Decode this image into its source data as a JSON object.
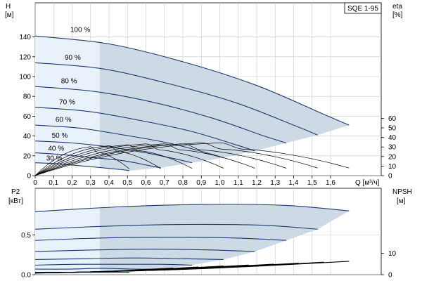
{
  "chart_data": [
    {
      "type": "line",
      "title": "SQE 1-95",
      "xlabel": "Q [м³/ч]",
      "ylabel": [
        "H",
        "[м]"
      ],
      "y2label": [
        "eta",
        "[%]"
      ],
      "xlim": [
        0,
        1.8
      ],
      "ylim": [
        0,
        160
      ],
      "y2lim": [
        0,
        70
      ],
      "x_ticks": [
        "0",
        "0,1",
        "0,2",
        "0,3",
        "0,4",
        "0,5",
        "0,6",
        "0,7",
        "0,8",
        "0,9",
        "1,0",
        "1,1",
        "1,2",
        "1,3",
        "1,4",
        "1,5",
        "1,6"
      ],
      "y_ticks": [
        "0",
        "20",
        "40",
        "60",
        "80",
        "100",
        "120",
        "140"
      ],
      "y2_ticks": [
        "0",
        "10",
        "20",
        "30",
        "40",
        "50",
        "60"
      ],
      "grid": true,
      "colors": {
        "curve": "#1c3a6e",
        "operating_area": "#cdd9e5",
        "light_area": "#e9f1fb",
        "efficiency": "#000000"
      },
      "series": [
        {
          "name": "100 %",
          "x": [
            0,
            0.4,
            0.8,
            1.2,
            1.55,
            1.7
          ],
          "values": [
            141,
            133,
            115,
            91,
            63,
            51
          ]
        },
        {
          "name": "90 %",
          "x": [
            0,
            0.36,
            0.72,
            1.08,
            1.4,
            1.53
          ],
          "values": [
            114,
            108,
            93,
            74,
            51,
            41
          ]
        },
        {
          "name": "80 %",
          "x": [
            0,
            0.32,
            0.64,
            0.96,
            1.24,
            1.36
          ],
          "values": [
            90,
            85,
            74,
            58,
            40,
            33
          ]
        },
        {
          "name": "70 %",
          "x": [
            0,
            0.28,
            0.56,
            0.84,
            1.09,
            1.19
          ],
          "values": [
            69,
            65,
            56,
            45,
            31,
            25
          ]
        },
        {
          "name": "60 %",
          "x": [
            0,
            0.24,
            0.48,
            0.72,
            0.93,
            1.02
          ],
          "values": [
            51,
            48,
            41,
            33,
            23,
            18
          ]
        },
        {
          "name": "50 %",
          "x": [
            0,
            0.2,
            0.4,
            0.6,
            0.78,
            0.85
          ],
          "values": [
            35,
            33,
            29,
            23,
            16,
            13
          ]
        },
        {
          "name": "40 %",
          "x": [
            0,
            0.16,
            0.32,
            0.48,
            0.62,
            0.68
          ],
          "values": [
            23,
            21,
            18,
            15,
            10,
            8
          ]
        },
        {
          "name": "30 %",
          "x": [
            0,
            0.12,
            0.24,
            0.36,
            0.47,
            0.51
          ],
          "values": [
            13,
            12,
            10,
            8,
            6,
            5
          ]
        }
      ]
    },
    {
      "type": "line",
      "ylabel": [
        "P2",
        "[кВт]"
      ],
      "y2label": [
        "NPSH",
        "[м]"
      ],
      "xlim": [
        0,
        1.8
      ],
      "ylim": [
        0,
        1.0
      ],
      "y2lim": [
        0,
        20
      ],
      "y_ticks": [
        "0.0",
        "0.5"
      ],
      "y2_ticks": [
        "0",
        "10"
      ],
      "grid": true,
      "power_series": [
        {
          "name": "100 %",
          "x": [
            0,
            0.45,
            0.9,
            1.35,
            1.7
          ],
          "values": [
            0.79,
            0.85,
            0.88,
            0.87,
            0.8
          ]
        },
        {
          "name": "90 %",
          "x": [
            0,
            0.41,
            0.82,
            1.23,
            1.53
          ],
          "values": [
            0.57,
            0.61,
            0.63,
            0.62,
            0.57
          ]
        },
        {
          "name": "80 %",
          "x": [
            0,
            0.36,
            0.72,
            1.08,
            1.36
          ],
          "values": [
            0.43,
            0.46,
            0.47,
            0.46,
            0.43
          ]
        },
        {
          "name": "70 %",
          "x": [
            0,
            0.32,
            0.63,
            0.95,
            1.19
          ],
          "values": [
            0.29,
            0.31,
            0.32,
            0.31,
            0.29
          ]
        },
        {
          "name": "60 %",
          "x": [
            0,
            0.27,
            0.54,
            0.81,
            1.02
          ],
          "values": [
            0.19,
            0.2,
            0.21,
            0.2,
            0.19
          ]
        },
        {
          "name": "50 %",
          "x": [
            0,
            0.23,
            0.45,
            0.68,
            0.85
          ],
          "values": [
            0.12,
            0.13,
            0.13,
            0.13,
            0.12
          ]
        },
        {
          "name": "40 %",
          "x": [
            0,
            0.18,
            0.36,
            0.54,
            0.68
          ],
          "values": [
            0.07,
            0.07,
            0.08,
            0.07,
            0.07
          ]
        },
        {
          "name": "30 %",
          "x": [
            0,
            0.14,
            0.27,
            0.41,
            0.51
          ],
          "values": [
            0.03,
            0.03,
            0.03,
            0.03,
            0.03
          ]
        }
      ],
      "npsh": {
        "x": [
          0,
          0.4,
          0.8,
          1.2,
          1.7
        ],
        "values": [
          0.2,
          0.8,
          1.8,
          3.3,
          5.6
        ]
      }
    }
  ]
}
